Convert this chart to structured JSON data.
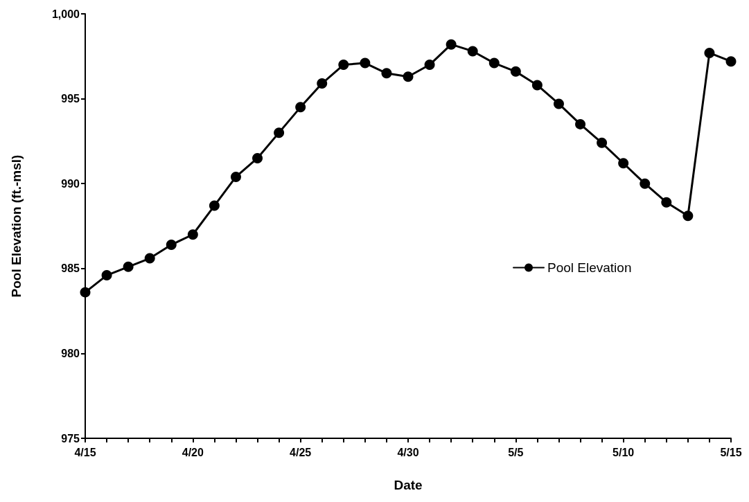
{
  "chart_data": {
    "type": "line",
    "xlabel": "Date",
    "ylabel": "Pool Elevation (ft.-msl)",
    "x": [
      "--04-15",
      "--04-16",
      "--04-17",
      "--04-18",
      "--04-19",
      "--04-20",
      "--04-21",
      "--04-22",
      "--04-23",
      "--04-24",
      "--04-25",
      "--04-26",
      "--04-27",
      "--04-28",
      "--04-29",
      "--04-30",
      "--05-01",
      "--05-02",
      "--05-03",
      "--05-04",
      "--05-05",
      "--05-06",
      "--05-07",
      "--05-08",
      "--05-09",
      "--05-10",
      "--05-11",
      "--05-12",
      "--05-13",
      "--05-14",
      "--05-15"
    ],
    "series": [
      {
        "name": "Pool Elevation",
        "color": "#000000",
        "values": [
          983.6,
          984.6,
          985.1,
          985.6,
          986.4,
          987.0,
          988.7,
          990.4,
          991.5,
          993.0,
          994.5,
          995.9,
          997.0,
          997.1,
          996.5,
          996.3,
          997.0,
          998.2,
          997.8,
          997.1,
          996.6,
          995.8,
          994.7,
          993.5,
          992.4,
          991.2,
          990.0,
          988.9,
          988.1,
          997.7,
          997.2
        ]
      }
    ],
    "xlim": [
      "--04-15",
      "--05-15"
    ],
    "xticks": [
      {
        "value": "--04-15",
        "label": "4/15"
      },
      {
        "value": "--04-16",
        "label": null
      },
      {
        "value": "--04-17",
        "label": null
      },
      {
        "value": "--04-18",
        "label": null
      },
      {
        "value": "--04-19",
        "label": null
      },
      {
        "value": "--04-20",
        "label": "4/20"
      },
      {
        "value": "--04-21",
        "label": null
      },
      {
        "value": "--04-22",
        "label": null
      },
      {
        "value": "--04-23",
        "label": null
      },
      {
        "value": "--04-24",
        "label": null
      },
      {
        "value": "--04-25",
        "label": "4/25"
      },
      {
        "value": "--04-26",
        "label": null
      },
      {
        "value": "--04-27",
        "label": null
      },
      {
        "value": "--04-28",
        "label": null
      },
      {
        "value": "--04-29",
        "label": null
      },
      {
        "value": "--04-30",
        "label": "4/30"
      },
      {
        "value": "--05-01",
        "label": null
      },
      {
        "value": "--05-02",
        "label": null
      },
      {
        "value": "--05-03",
        "label": null
      },
      {
        "value": "--05-04",
        "label": null
      },
      {
        "value": "--05-05",
        "label": "5/5"
      },
      {
        "value": "--05-06",
        "label": null
      },
      {
        "value": "--05-07",
        "label": null
      },
      {
        "value": "--05-08",
        "label": null
      },
      {
        "value": "--05-09",
        "label": null
      },
      {
        "value": "--05-10",
        "label": "5/10"
      },
      {
        "value": "--05-11",
        "label": null
      },
      {
        "value": "--05-12",
        "label": null
      },
      {
        "value": "--05-13",
        "label": null
      },
      {
        "value": "--05-14",
        "label": null
      },
      {
        "value": "--05-15",
        "label": "5/15"
      }
    ],
    "ylim": [
      975,
      1000
    ],
    "yticks": [
      975,
      980,
      985,
      990,
      995,
      {
        "value": 1000,
        "label": "1,000"
      }
    ],
    "grid": false,
    "legend": "right",
    "marker": "circle",
    "line_style": "solid"
  }
}
